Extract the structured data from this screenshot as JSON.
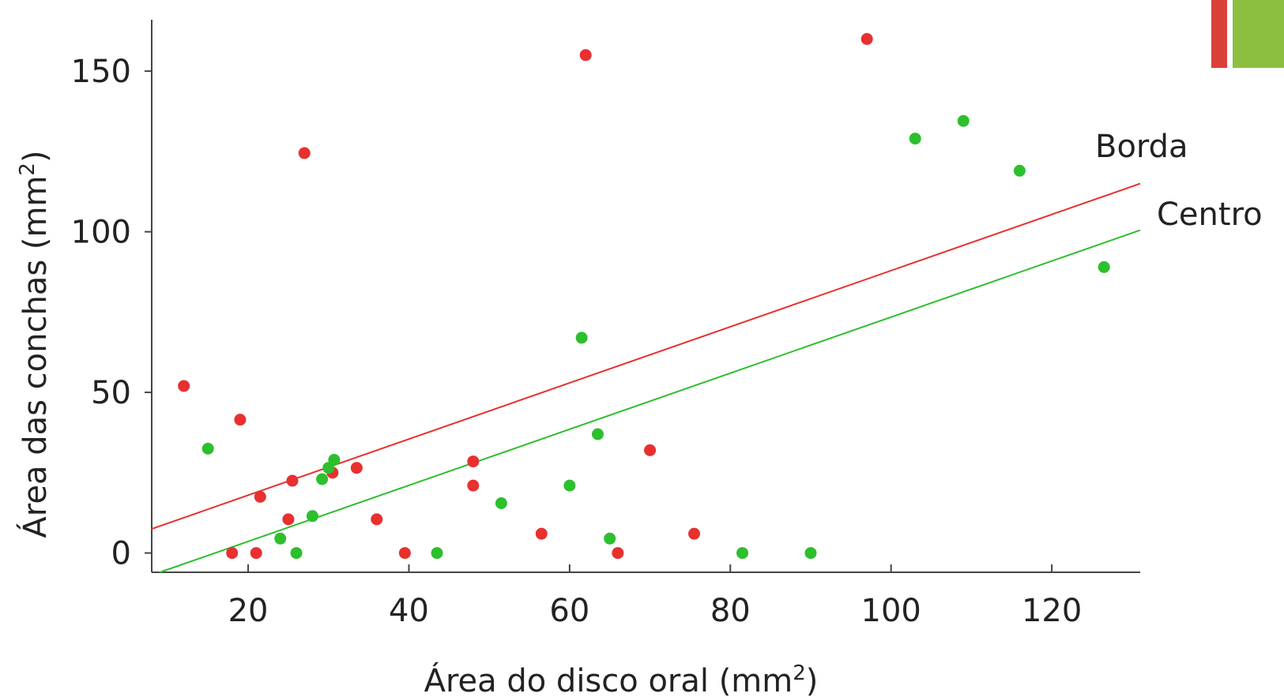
{
  "chart_data": {
    "type": "scatter",
    "xlabel": "Área do disco oral (mm",
    "xlabel_sup": "2",
    "xlabel_end": ")",
    "ylabel": "Área das conchas (mm",
    "ylabel_sup": "2",
    "ylabel_end": ")",
    "xlim": [
      8,
      131
    ],
    "ylim": [
      -6,
      166
    ],
    "xticks": [
      20,
      40,
      60,
      80,
      100,
      120
    ],
    "yticks": [
      0,
      50,
      100,
      150
    ],
    "grid": false,
    "series": [
      {
        "name": "Borda",
        "color": "#e8302f",
        "trend": {
          "x": [
            8,
            131
          ],
          "y": [
            7.5,
            115
          ]
        },
        "points": [
          {
            "x": 12,
            "y": 52
          },
          {
            "x": 19,
            "y": 41.5
          },
          {
            "x": 18,
            "y": 0
          },
          {
            "x": 21,
            "y": 0
          },
          {
            "x": 21.5,
            "y": 17.5
          },
          {
            "x": 25,
            "y": 10.5
          },
          {
            "x": 25.5,
            "y": 22.5
          },
          {
            "x": 27,
            "y": 124.5
          },
          {
            "x": 30.5,
            "y": 25
          },
          {
            "x": 33.5,
            "y": 26.5
          },
          {
            "x": 36,
            "y": 10.5
          },
          {
            "x": 39.5,
            "y": 0
          },
          {
            "x": 48,
            "y": 28.5
          },
          {
            "x": 48,
            "y": 21
          },
          {
            "x": 56.5,
            "y": 6
          },
          {
            "x": 62,
            "y": 155
          },
          {
            "x": 66,
            "y": 0
          },
          {
            "x": 70,
            "y": 32
          },
          {
            "x": 75.5,
            "y": 6
          },
          {
            "x": 97,
            "y": 160
          }
        ]
      },
      {
        "name": "Centro",
        "color": "#2dbf2d",
        "trend": {
          "x": [
            9,
            131
          ],
          "y": [
            -6,
            100.5
          ]
        },
        "points": [
          {
            "x": 15,
            "y": 32.5
          },
          {
            "x": 24,
            "y": 4.5
          },
          {
            "x": 26,
            "y": 0
          },
          {
            "x": 28,
            "y": 11.5
          },
          {
            "x": 29.2,
            "y": 23
          },
          {
            "x": 30,
            "y": 26.5
          },
          {
            "x": 30.7,
            "y": 29
          },
          {
            "x": 43.5,
            "y": 0
          },
          {
            "x": 51.5,
            "y": 15.5
          },
          {
            "x": 60,
            "y": 21
          },
          {
            "x": 61.5,
            "y": 67
          },
          {
            "x": 63.5,
            "y": 37
          },
          {
            "x": 65,
            "y": 4.5
          },
          {
            "x": 81.5,
            "y": 0
          },
          {
            "x": 90,
            "y": 0
          },
          {
            "x": 103,
            "y": 129
          },
          {
            "x": 109,
            "y": 134.5
          },
          {
            "x": 116,
            "y": 119
          },
          {
            "x": 126.5,
            "y": 89
          }
        ]
      }
    ]
  },
  "decor": {
    "accent_red": "#d9403a",
    "accent_green": "#8cbf3f"
  }
}
